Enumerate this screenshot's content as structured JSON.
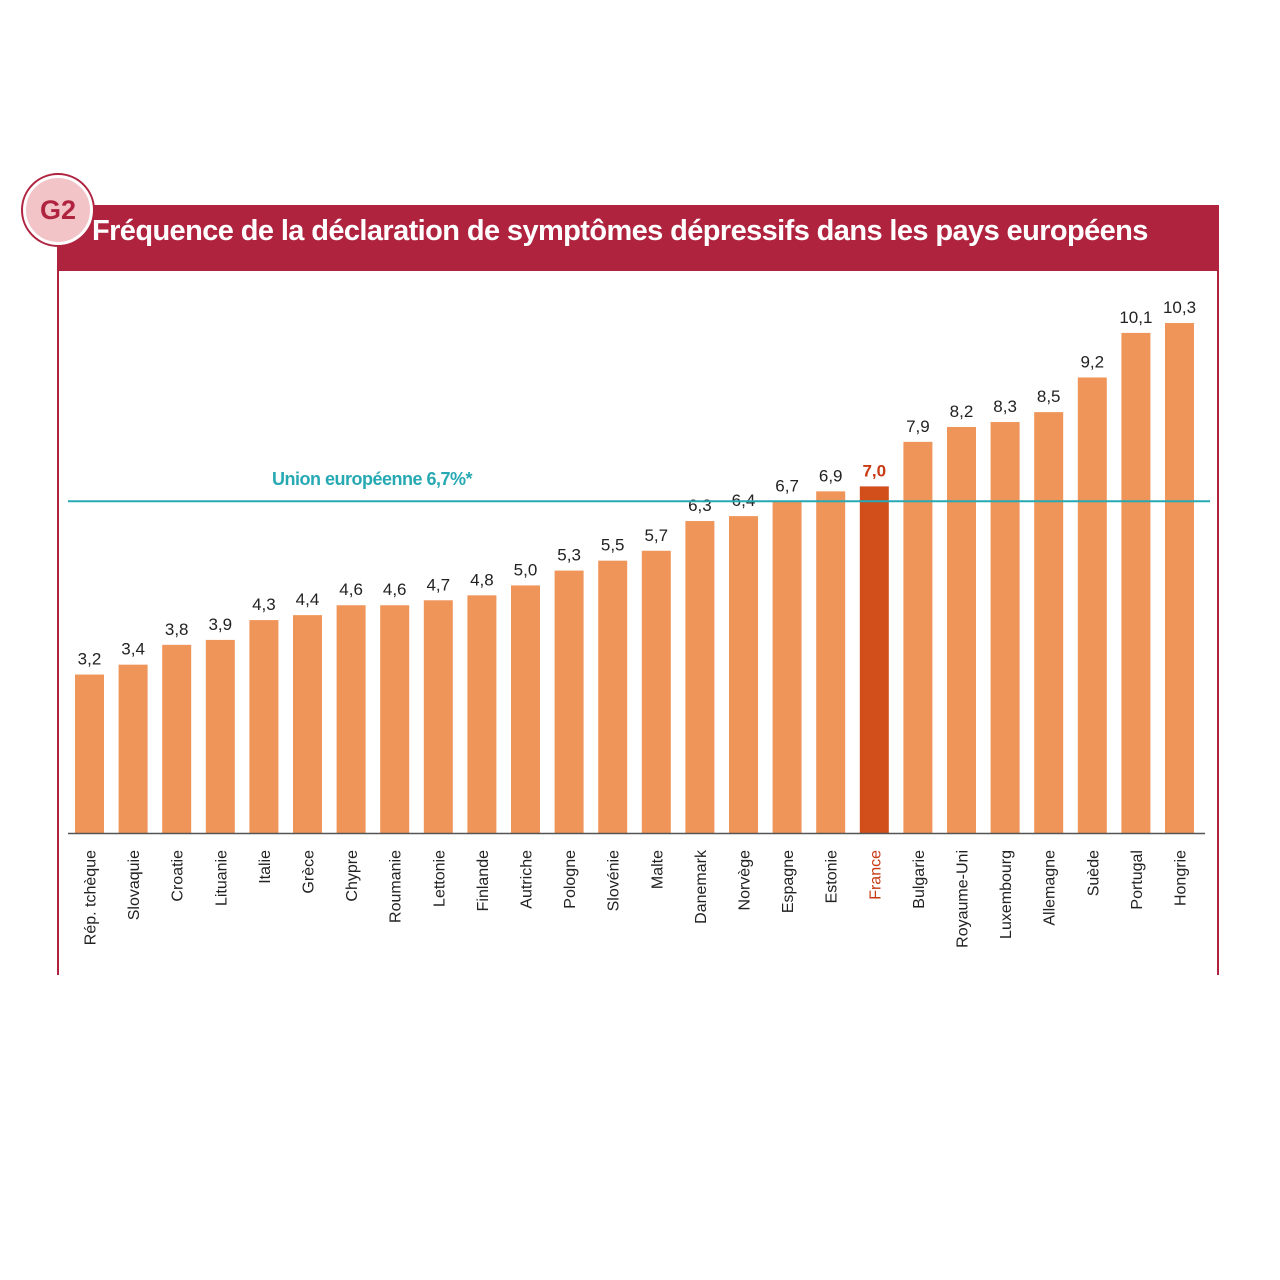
{
  "figure": {
    "badge": "G2",
    "title": "Fréquence de la déclaration de symptômes dépressifs dans les pays européens"
  },
  "colors": {
    "header": "#b0233f",
    "bar": "#f0955a",
    "highlight_bar": "#d24e1b",
    "highlight_text": "#c83a14",
    "reference_line": "#27a9b3"
  },
  "chart_data": {
    "type": "bar",
    "categories": [
      "Rép. tchèque",
      "Slovaquie",
      "Croatie",
      "Lituanie",
      "Italie",
      "Grèce",
      "Chypre",
      "Roumanie",
      "Lettonie",
      "Finlande",
      "Autriche",
      "Pologne",
      "Slovénie",
      "Malte",
      "Danemark",
      "Norvège",
      "Espagne",
      "Estonie",
      "France",
      "Bulgarie",
      "Royaume-Uni",
      "Luxembourg",
      "Allemagne",
      "Suède",
      "Portugal",
      "Hongrie"
    ],
    "values": [
      3.2,
      3.4,
      3.8,
      3.9,
      4.3,
      4.4,
      4.6,
      4.6,
      4.7,
      4.8,
      5.0,
      5.3,
      5.5,
      5.7,
      6.3,
      6.4,
      6.7,
      6.9,
      7.0,
      7.9,
      8.2,
      8.3,
      8.5,
      9.2,
      10.1,
      10.3
    ],
    "value_labels": [
      "3,2",
      "3,4",
      "3,8",
      "3,9",
      "4,3",
      "4,4",
      "4,6",
      "4,6",
      "4,7",
      "4,8",
      "5,0",
      "5,3",
      "5,5",
      "5,7",
      "6,3",
      "6,4",
      "6,7",
      "6,9",
      "7,0",
      "7,9",
      "8,2",
      "8,3",
      "8,5",
      "9,2",
      "10,1",
      "10,3"
    ],
    "highlight": "France",
    "reference": {
      "value": 6.7,
      "label": "Union européenne  6,7%*"
    },
    "ylim": [
      0,
      10.3
    ],
    "grid": false
  }
}
